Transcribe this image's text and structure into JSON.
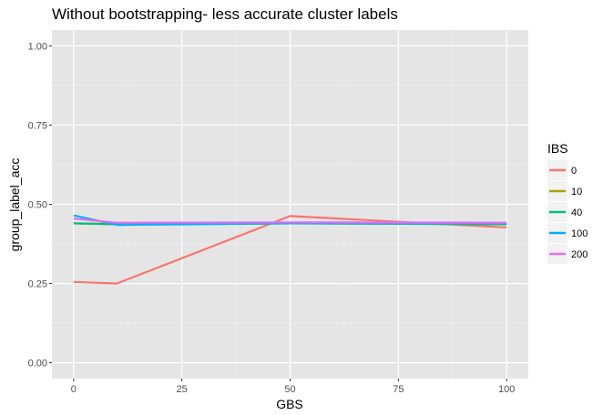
{
  "chart_data": {
    "type": "line",
    "title": "Without bootstrapping- less accurate cluster labels",
    "xlabel": "GBS",
    "ylabel": "group_label_acc",
    "x": [
      0,
      10,
      50,
      100
    ],
    "xlim": [
      -5,
      105
    ],
    "ylim": [
      -0.05,
      1.05
    ],
    "xticks": [
      {
        "value": 0,
        "label": "0"
      },
      {
        "value": 25,
        "label": "25"
      },
      {
        "value": 50,
        "label": "50"
      },
      {
        "value": 75,
        "label": "75"
      },
      {
        "value": 100,
        "label": "100"
      }
    ],
    "yticks": [
      {
        "value": 0,
        "label": "0.00"
      },
      {
        "value": 0.25,
        "label": "0.25"
      },
      {
        "value": 0.5,
        "label": "0.50"
      },
      {
        "value": 0.75,
        "label": "0.75"
      },
      {
        "value": 1.0,
        "label": "1.00"
      }
    ],
    "grid": true,
    "background_color": "#e5e5e5",
    "legend": {
      "title": "IBS",
      "position": "right"
    },
    "series": [
      {
        "name": "0",
        "color": "#f8766d",
        "values": [
          0.255,
          0.25,
          0.463,
          0.427
        ]
      },
      {
        "name": "10",
        "color": "#a3a500",
        "values": [
          0.44,
          0.437,
          0.44,
          0.437
        ]
      },
      {
        "name": "40",
        "color": "#00bf7d",
        "values": [
          0.44,
          0.437,
          0.44,
          0.437
        ]
      },
      {
        "name": "100",
        "color": "#00b0f6",
        "values": [
          0.465,
          0.435,
          0.44,
          0.44
        ]
      },
      {
        "name": "200",
        "color": "#e76bf3",
        "values": [
          0.455,
          0.442,
          0.443,
          0.442
        ]
      }
    ]
  }
}
